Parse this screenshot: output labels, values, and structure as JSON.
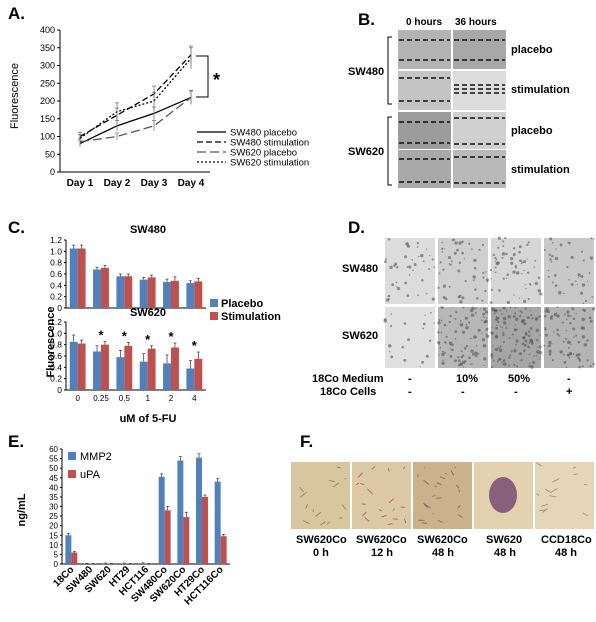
{
  "panels": {
    "A": "A.",
    "B": "B.",
    "C": "C.",
    "D": "D.",
    "E": "E.",
    "F": "F."
  },
  "colors": {
    "blue": "#4f81bd",
    "red": "#c0504d",
    "gray_img": "#b7b7b7",
    "light_img": "#e3e3e3",
    "stain_bg": "#d9c29a"
  },
  "chart_data": [
    {
      "id": "A",
      "type": "line",
      "ylabel": "Fluorescence",
      "categories": [
        "Day 1",
        "Day 2",
        "Day 3",
        "Day 4"
      ],
      "ylim": [
        0,
        400
      ],
      "yticks": [
        0,
        50,
        100,
        150,
        200,
        250,
        300,
        350,
        400
      ],
      "significance": "*",
      "series": [
        {
          "name": "SW480 placebo",
          "style": "solid",
          "values": [
            80,
            130,
            165,
            210
          ],
          "err": [
            10,
            15,
            18,
            20
          ]
        },
        {
          "name": "SW480 stimulation",
          "style": "dashed",
          "values": [
            100,
            160,
            220,
            330
          ],
          "err": [
            12,
            20,
            22,
            25
          ]
        },
        {
          "name": "SW620 placebo",
          "style": "longdash",
          "values": [
            85,
            100,
            130,
            210
          ],
          "err": [
            10,
            10,
            15,
            18
          ]
        },
        {
          "name": "SW620 stimulation",
          "style": "dotted",
          "values": [
            95,
            170,
            200,
            320
          ],
          "err": [
            10,
            25,
            25,
            30
          ]
        }
      ]
    },
    {
      "id": "C1",
      "type": "bar",
      "title": "SW480",
      "ylim": [
        0,
        1.2
      ],
      "yticks": [
        "0",
        "0.2",
        "0.4",
        "0.6",
        "0.8",
        "1.0",
        "1.2"
      ],
      "categories": [
        "0",
        "0.25",
        "0.5",
        "1",
        "2",
        "4"
      ],
      "series": [
        {
          "name": "Placebo",
          "values": [
            1.05,
            0.68,
            0.56,
            0.5,
            0.46,
            0.44
          ],
          "err": [
            0.06,
            0.04,
            0.04,
            0.04,
            0.05,
            0.04
          ]
        },
        {
          "name": "Stimulation",
          "values": [
            1.05,
            0.71,
            0.56,
            0.54,
            0.48,
            0.47
          ],
          "err": [
            0.06,
            0.04,
            0.04,
            0.04,
            0.07,
            0.05
          ]
        }
      ]
    },
    {
      "id": "C2",
      "type": "bar",
      "title": "SW620",
      "ylabel": "Fluorescence",
      "xlabel": "uM of 5-FU",
      "ylim": [
        0,
        1.2
      ],
      "yticks": [
        "0",
        "0.2",
        "0.4",
        "0.6",
        "0.8",
        "1.0",
        "1.2"
      ],
      "categories": [
        "0",
        "0.25",
        "0.5",
        "1",
        "2",
        "4"
      ],
      "stars": [
        "",
        "*",
        "*",
        "*",
        "*",
        "*"
      ],
      "series": [
        {
          "name": "Placebo",
          "values": [
            0.85,
            0.68,
            0.58,
            0.5,
            0.47,
            0.38
          ],
          "err": [
            0.12,
            0.1,
            0.12,
            0.14,
            0.15,
            0.14
          ]
        },
        {
          "name": "Stimulation",
          "values": [
            0.82,
            0.8,
            0.78,
            0.73,
            0.75,
            0.55
          ],
          "err": [
            0.06,
            0.06,
            0.06,
            0.05,
            0.08,
            0.12
          ]
        }
      ]
    },
    {
      "id": "E",
      "type": "bar",
      "ylabel": "ng/mL",
      "ylim": [
        0,
        60
      ],
      "yticks": [
        "0",
        "5",
        "10",
        "15",
        "20",
        "25",
        "30",
        "35",
        "40",
        "45",
        "50",
        "55",
        "60"
      ],
      "categories": [
        "18Co",
        "SW480",
        "SW620",
        "HT29",
        "HCT116",
        "SW480Co",
        "SW620Co",
        "HT29Co",
        "HCT116Co"
      ],
      "series": [
        {
          "name": "MMP2",
          "values": [
            15,
            0.2,
            0.3,
            0.3,
            0.4,
            45.5,
            54,
            55.5,
            43
          ],
          "err": [
            1,
            0.2,
            0.2,
            0.2,
            0.2,
            1.5,
            2,
            2,
            1.5
          ]
        },
        {
          "name": "uPA",
          "values": [
            6,
            0.2,
            0.2,
            0.2,
            0.2,
            28,
            24.5,
            35,
            14.5
          ],
          "err": [
            0.5,
            0.1,
            0.1,
            0.1,
            0.1,
            2,
            2.5,
            1,
            1
          ]
        }
      ]
    }
  ],
  "panel_b": {
    "col_headers": [
      "0 hours",
      "36 hours"
    ],
    "groups": [
      {
        "name": "SW480",
        "rows": [
          "placebo",
          "stimulation"
        ]
      },
      {
        "name": "SW620",
        "rows": [
          "placebo",
          "stimulation"
        ]
      }
    ]
  },
  "panel_d": {
    "row_labels": [
      "SW480",
      "SW620"
    ],
    "conditions": [
      {
        "label": "18Co Medium",
        "values": [
          "-",
          "10%",
          "50%",
          "-"
        ]
      },
      {
        "label": "18Co Cells",
        "values": [
          "-",
          "-",
          "-",
          "+"
        ]
      }
    ]
  },
  "panel_f": {
    "labels": [
      {
        "line1": "SW620Co",
        "line2": "0 h"
      },
      {
        "line1": "SW620Co",
        "line2": "12 h"
      },
      {
        "line1": "SW620Co",
        "line2": "48 h"
      },
      {
        "line1": "SW620",
        "line2": "48 h"
      },
      {
        "line1": "CCD18Co",
        "line2": "48 h"
      }
    ]
  }
}
